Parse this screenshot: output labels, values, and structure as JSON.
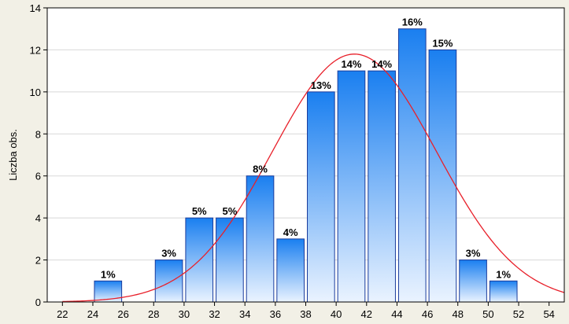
{
  "chart_data": {
    "type": "bar",
    "title": "",
    "xlabel": "",
    "ylabel": "Liczba obs.",
    "xlim": [
      21,
      55
    ],
    "ylim": [
      0,
      14
    ],
    "x_ticks": [
      22,
      24,
      26,
      28,
      30,
      32,
      34,
      36,
      38,
      40,
      42,
      44,
      46,
      48,
      50,
      52,
      54
    ],
    "y_ticks": [
      0,
      2,
      4,
      6,
      8,
      10,
      12,
      14
    ],
    "grid": true,
    "bins": [
      {
        "from": 22,
        "to": 24,
        "value": 0,
        "label": ""
      },
      {
        "from": 24,
        "to": 26,
        "value": 1,
        "label": "1%"
      },
      {
        "from": 26,
        "to": 28,
        "value": 0,
        "label": ""
      },
      {
        "from": 28,
        "to": 30,
        "value": 2,
        "label": "3%"
      },
      {
        "from": 30,
        "to": 32,
        "value": 4,
        "label": "5%"
      },
      {
        "from": 32,
        "to": 34,
        "value": 4,
        "label": "5%"
      },
      {
        "from": 34,
        "to": 36,
        "value": 6,
        "label": "8%"
      },
      {
        "from": 36,
        "to": 38,
        "value": 3,
        "label": "4%"
      },
      {
        "from": 38,
        "to": 40,
        "value": 10,
        "label": "13%"
      },
      {
        "from": 40,
        "to": 42,
        "value": 11,
        "label": "14%"
      },
      {
        "from": 42,
        "to": 44,
        "value": 11,
        "label": "14%"
      },
      {
        "from": 44,
        "to": 46,
        "value": 13,
        "label": "16%"
      },
      {
        "from": 46,
        "to": 48,
        "value": 12,
        "label": "15%"
      },
      {
        "from": 48,
        "to": 50,
        "value": 2,
        "label": "3%"
      },
      {
        "from": 50,
        "to": 52,
        "value": 1,
        "label": "1%"
      }
    ],
    "normal_curve": {
      "mean": 41.2,
      "sd": 5.4,
      "peak": 11.8,
      "color": "#e8202a"
    },
    "colors": {
      "background": "#f2f0e6",
      "plot_background": "#ffffff",
      "bar_top": "#1a7ff0",
      "bar_bottom": "#eaf3ff",
      "bar_stroke": "#1a3c9c",
      "grid": "#d8d8d8"
    }
  }
}
